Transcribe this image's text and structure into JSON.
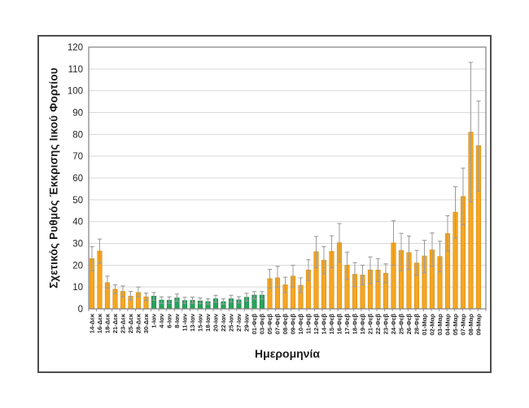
{
  "chart_data": {
    "type": "bar",
    "title": "",
    "xlabel": "Ημερομηνία",
    "ylabel": "Σχετικός Ρυθμός Έκκρισης Ιικού Φορτίου",
    "ylim": [
      0,
      120
    ],
    "y_ticks": [
      0,
      10,
      20,
      30,
      40,
      50,
      60,
      70,
      80,
      90,
      100,
      110,
      120
    ],
    "grid": "horizontal",
    "legend_position": "none",
    "error_bars": true,
    "colors": {
      "orange": "#F5A623",
      "orange_border": "#DE9212",
      "green": "#28A35C",
      "green_border": "#1E8A4C",
      "error_bar": "#9B9B9B",
      "gridline": "#D9D9D9",
      "plot_border": "#7F7F7F",
      "text": "#262626"
    },
    "categories": [
      "14-Δεκ",
      "16-Δεκ",
      "18-Δεκ",
      "21-Δεκ",
      "23-Δεκ",
      "25-Δεκ",
      "28-Δεκ",
      "30-Δεκ",
      "1-Ιαν",
      "4-Ιαν",
      "6-Ιαν",
      "8-Ιαν",
      "11-Ιαν",
      "13-Ιαν",
      "15-Ιαν",
      "18-Ιαν",
      "20-Ιαν",
      "22-Ιαν",
      "25-Ιαν",
      "27-Ιαν",
      "29-Ιαν",
      "01-Φεβ",
      "03-Φεβ",
      "05-Φεβ",
      "07-Φεβ",
      "08-Φεβ",
      "09-Φεβ",
      "10-Φεβ",
      "11-Φεβ",
      "12-Φεβ",
      "14-Φεβ",
      "15-Φεβ",
      "16-Φεβ",
      "17-Φεβ",
      "18-Φεβ",
      "19-Φεβ",
      "21-Φεβ",
      "22-Φεβ",
      "23-Φεβ",
      "24-Φεβ",
      "25-Φεβ",
      "26-Φεβ",
      "28-Φεβ",
      "01-Μαρ",
      "02-Μαρ",
      "03-Μαρ",
      "04-Μαρ",
      "05-Μαρ",
      "07-Μαρ",
      "08-Μαρ",
      "09-Μαρ"
    ],
    "values": [
      23,
      26.5,
      12,
      9,
      8,
      5.8,
      7.5,
      5.5,
      5.8,
      4,
      3.9,
      5,
      3.8,
      3.9,
      3.6,
      3.3,
      4.6,
      3.3,
      4.6,
      4.1,
      5.3,
      6.3,
      6.3,
      13.8,
      14.2,
      11,
      15,
      10.8,
      17.8,
      26.2,
      22.3,
      26.3,
      30.3,
      20,
      15.8,
      15.5,
      17.8,
      17.8,
      16.3,
      30.2,
      26.8,
      25.8,
      21,
      24.2,
      27,
      24,
      34.5,
      44.3,
      51.5,
      81,
      74.8
    ],
    "error_low": [
      17.5,
      21,
      9.5,
      7,
      5.5,
      4,
      5.5,
      3.8,
      4,
      2.5,
      2.5,
      3.5,
      2.5,
      2.6,
      2.4,
      2.2,
      3.1,
      2.2,
      3.1,
      2.7,
      3.6,
      4.5,
      4.5,
      9.5,
      10,
      7.5,
      10,
      7.5,
      13,
      19,
      16,
      19,
      21.5,
      13.5,
      10.2,
      11,
      11.6,
      12.5,
      12,
      20,
      17.5,
      18,
      15.5,
      16.5,
      19.5,
      17,
      26.5,
      32.5,
      38.5,
      49,
      54
    ],
    "error_high": [
      28.5,
      32,
      15,
      11,
      10.5,
      8,
      10,
      7.2,
      7.5,
      5.5,
      5.5,
      6.8,
      5.3,
      5.4,
      5,
      4.6,
      6.2,
      4.6,
      6.2,
      5.6,
      7.1,
      7.9,
      7.9,
      18.1,
      19.5,
      14.5,
      20,
      14.2,
      22.5,
      33.2,
      28.5,
      33.5,
      39.1,
      26,
      21.2,
      20,
      23.8,
      23,
      20.6,
      40.4,
      34.6,
      33.4,
      26.8,
      31.4,
      34.8,
      31,
      42.7,
      56,
      64.5,
      113,
      95.3
    ],
    "bar_colors": [
      "orange",
      "orange",
      "orange",
      "orange",
      "orange",
      "orange",
      "orange",
      "orange",
      "green",
      "green",
      "green",
      "green",
      "green",
      "green",
      "green",
      "green",
      "green",
      "green",
      "green",
      "green",
      "green",
      "green",
      "green",
      "orange",
      "orange",
      "orange",
      "orange",
      "orange",
      "orange",
      "orange",
      "orange",
      "orange",
      "orange",
      "orange",
      "orange",
      "orange",
      "orange",
      "orange",
      "orange",
      "orange",
      "orange",
      "orange",
      "orange",
      "orange",
      "orange",
      "orange",
      "orange",
      "orange",
      "orange",
      "orange",
      "orange"
    ]
  }
}
